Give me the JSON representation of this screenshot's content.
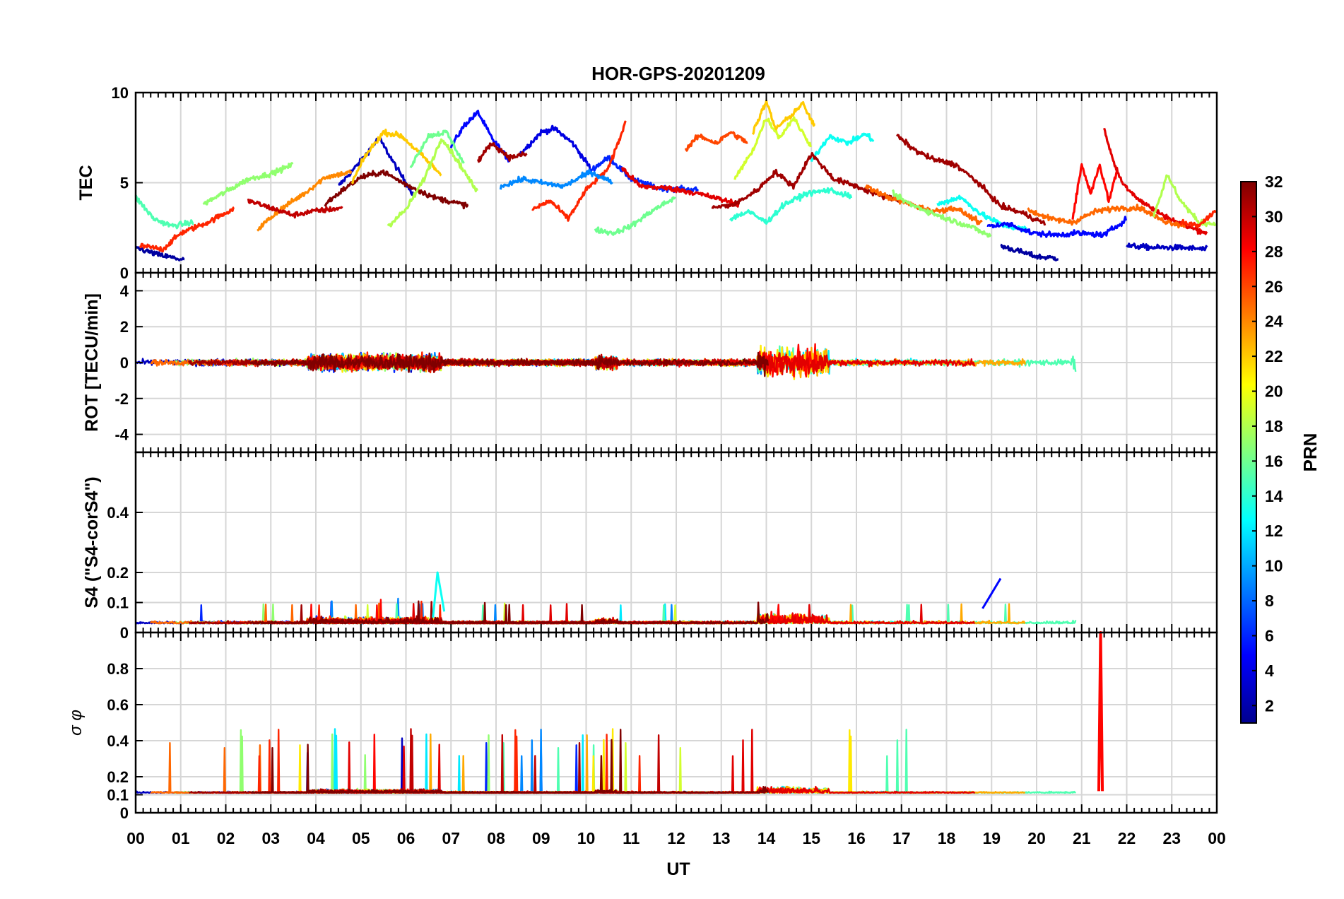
{
  "chart_data": {
    "type": "line",
    "title": "HOR-GPS-20201209",
    "xlabel": "UT",
    "x_ticks": [
      "00",
      "01",
      "02",
      "03",
      "04",
      "05",
      "06",
      "07",
      "08",
      "09",
      "10",
      "11",
      "12",
      "13",
      "14",
      "15",
      "16",
      "17",
      "18",
      "19",
      "20",
      "21",
      "22",
      "23",
      "00"
    ],
    "xlim": [
      0,
      24
    ],
    "colorbar": {
      "label": "PRN",
      "range": [
        1,
        32
      ],
      "ticks": [
        "2",
        "4",
        "6",
        "8",
        "10",
        "12",
        "14",
        "16",
        "18",
        "20",
        "22",
        "24",
        "26",
        "28",
        "30",
        "32"
      ],
      "colormap": "jet"
    },
    "panels": [
      {
        "name": "tec",
        "ylabel": "TEC",
        "ylim": [
          0,
          10
        ],
        "yticks": [
          "0",
          "5",
          "10"
        ],
        "series": [
          {
            "prn": 3,
            "x": [
              4.5,
              5.0,
              5.4,
              5.8,
              6.2
            ],
            "y": [
              4.8,
              6.2,
              7.5,
              5.8,
              4.2
            ]
          },
          {
            "prn": 5,
            "x": [
              7.0,
              7.3,
              7.6,
              7.9,
              8.3
            ],
            "y": [
              7.0,
              8.2,
              8.9,
              7.5,
              6.2
            ]
          },
          {
            "prn": 4,
            "x": [
              8.5,
              9.0,
              9.3,
              9.7,
              10.1
            ],
            "y": [
              6.5,
              7.8,
              8.0,
              7.2,
              5.8
            ]
          },
          {
            "prn": 6,
            "x": [
              10.0,
              10.5,
              11.0,
              11.6,
              12.5
            ],
            "y": [
              5.5,
              6.4,
              5.2,
              4.7,
              4.6
            ]
          },
          {
            "prn": 2,
            "x": [
              19.2,
              19.6,
              20.0,
              20.5
            ],
            "y": [
              1.5,
              1.2,
              0.9,
              0.8
            ]
          },
          {
            "prn": 3,
            "x": [
              22.0,
              22.6,
              23.2,
              23.8
            ],
            "y": [
              1.5,
              1.4,
              1.4,
              1.3
            ]
          },
          {
            "prn": 2,
            "x": [
              0.0,
              0.5,
              1.1
            ],
            "y": [
              1.4,
              1.0,
              0.7
            ]
          },
          {
            "prn": 27,
            "x": [
              0.1,
              0.6,
              1.0,
              1.6,
              2.2
            ],
            "y": [
              1.5,
              1.3,
              2.2,
              2.8,
              3.6
            ]
          },
          {
            "prn": 15,
            "x": [
              0.0,
              0.4,
              0.8,
              1.3
            ],
            "y": [
              4.2,
              3.0,
              2.6,
              2.8
            ]
          },
          {
            "prn": 17,
            "x": [
              1.5,
              2.0,
              2.5,
              3.0,
              3.5
            ],
            "y": [
              3.8,
              4.5,
              5.2,
              5.5,
              6.0
            ]
          },
          {
            "prn": 24,
            "x": [
              2.7,
              3.2,
              3.8,
              4.2,
              4.8
            ],
            "y": [
              2.4,
              3.5,
              4.5,
              5.3,
              5.6
            ]
          },
          {
            "prn": 30,
            "x": [
              2.5,
              3.0,
              3.5,
              3.9,
              4.6
            ],
            "y": [
              4.0,
              3.6,
              3.2,
              3.4,
              3.6
            ]
          },
          {
            "prn": 32,
            "x": [
              4.2,
              4.6,
              5.0,
              5.5,
              6.0,
              6.6,
              7.4
            ],
            "y": [
              3.8,
              4.6,
              5.3,
              5.6,
              4.9,
              4.2,
              3.7
            ]
          },
          {
            "prn": 22,
            "x": [
              4.8,
              5.1,
              5.5,
              5.9,
              6.4,
              6.8
            ],
            "y": [
              5.0,
              6.5,
              7.8,
              7.6,
              6.4,
              5.4
            ]
          },
          {
            "prn": 18,
            "x": [
              5.6,
              6.0,
              6.4,
              6.8,
              7.2,
              7.6
            ],
            "y": [
              2.6,
              3.5,
              5.2,
              7.5,
              6.0,
              4.4
            ]
          },
          {
            "prn": 16,
            "x": [
              6.1,
              6.5,
              6.9,
              7.3
            ],
            "y": [
              5.9,
              7.6,
              7.8,
              6.0
            ]
          },
          {
            "prn": 31,
            "x": [
              7.6,
              7.9,
              8.3,
              8.7
            ],
            "y": [
              6.2,
              7.2,
              6.4,
              6.6
            ]
          },
          {
            "prn": 27,
            "x": [
              8.8,
              9.2,
              9.6,
              10.0,
              10.5,
              10.9
            ],
            "y": [
              3.5,
              4.0,
              3.0,
              4.6,
              5.8,
              8.5
            ]
          },
          {
            "prn": 9,
            "x": [
              8.1,
              8.6,
              9.0,
              9.5,
              10.1,
              10.6
            ],
            "y": [
              4.8,
              5.2,
              5.0,
              4.8,
              5.6,
              5.0
            ]
          },
          {
            "prn": 16,
            "x": [
              10.2,
              10.6,
              11.0,
              11.5,
              12.0
            ],
            "y": [
              2.4,
              2.2,
              2.6,
              3.5,
              4.2
            ]
          },
          {
            "prn": 29,
            "x": [
              10.8,
              11.2,
              11.8,
              12.3,
              12.8,
              13.4
            ],
            "y": [
              5.8,
              4.8,
              4.7,
              4.5,
              4.2,
              3.8
            ]
          },
          {
            "prn": 26,
            "x": [
              12.2,
              12.5,
              12.9,
              13.2,
              13.6
            ],
            "y": [
              6.8,
              7.6,
              7.2,
              7.8,
              7.2
            ]
          },
          {
            "prn": 19,
            "x": [
              13.3,
              13.7,
              14.0,
              14.3,
              14.6,
              15.0
            ],
            "y": [
              5.2,
              6.8,
              8.6,
              7.5,
              8.6,
              7.0
            ]
          },
          {
            "prn": 22,
            "x": [
              13.7,
              14.0,
              14.2,
              14.5,
              14.8,
              15.1
            ],
            "y": [
              7.8,
              9.5,
              8.0,
              8.6,
              9.4,
              8.0
            ]
          },
          {
            "prn": 13,
            "x": [
              15.0,
              15.4,
              15.8,
              16.2,
              16.4
            ],
            "y": [
              6.2,
              7.6,
              7.2,
              7.7,
              7.3
            ]
          },
          {
            "prn": 31,
            "x": [
              12.8,
              13.3,
              13.8,
              14.2,
              14.6,
              15.0,
              15.5,
              16.0,
              16.5,
              17.0
            ],
            "y": [
              3.6,
              3.8,
              4.6,
              5.6,
              4.8,
              6.6,
              5.2,
              4.8,
              4.3,
              4.0
            ]
          },
          {
            "prn": 14,
            "x": [
              13.2,
              13.6,
              14.0,
              14.4,
              14.9,
              15.4,
              15.9
            ],
            "y": [
              3.0,
              3.4,
              2.8,
              3.8,
              4.4,
              4.6,
              4.2
            ]
          },
          {
            "prn": 31,
            "x": [
              16.9,
              17.3,
              17.7,
              18.2,
              18.7,
              19.2,
              19.7,
              20.2
            ],
            "y": [
              7.6,
              6.8,
              6.3,
              6.0,
              5.0,
              3.7,
              3.3,
              2.7
            ]
          },
          {
            "prn": 25,
            "x": [
              16.2,
              16.7,
              17.2,
              17.7,
              18.2,
              18.8
            ],
            "y": [
              4.8,
              4.2,
              3.8,
              3.4,
              3.6,
              2.7
            ]
          },
          {
            "prn": 17,
            "x": [
              16.8,
              17.2,
              17.6,
              18.0,
              18.5,
              19.0
            ],
            "y": [
              4.4,
              3.8,
              3.4,
              3.0,
              2.6,
              2.0
            ]
          },
          {
            "prn": 13,
            "x": [
              17.8,
              18.3,
              18.8,
              19.3,
              19.8
            ],
            "y": [
              3.8,
              4.2,
              3.2,
              2.6,
              2.4
            ]
          },
          {
            "prn": 5,
            "x": [
              18.9,
              19.4,
              19.9,
              20.4,
              20.9,
              21.5,
              22.0
            ],
            "y": [
              2.6,
              2.7,
              2.2,
              2.1,
              2.2,
              2.1,
              3.0
            ]
          },
          {
            "prn": 28,
            "x": [
              20.8,
              21.0,
              21.2,
              21.4,
              21.6,
              21.8
            ],
            "y": [
              3.0,
              6.0,
              4.4,
              6.0,
              4.0,
              5.8
            ]
          },
          {
            "prn": 29,
            "x": [
              21.5,
              21.7,
              21.9,
              22.3,
              22.8,
              23.3,
              23.8
            ],
            "y": [
              8.0,
              6.2,
              5.0,
              4.0,
              3.2,
              2.6,
              2.2
            ]
          },
          {
            "prn": 25,
            "x": [
              19.8,
              20.3,
              20.8,
              21.3,
              21.8,
              22.3,
              22.8,
              23.3
            ],
            "y": [
              3.5,
              3.0,
              2.8,
              3.4,
              3.6,
              3.6,
              2.9,
              2.6
            ]
          },
          {
            "prn": 18,
            "x": [
              22.6,
              22.9,
              23.2,
              23.6,
              24.0
            ],
            "y": [
              3.2,
              5.4,
              4.0,
              2.8,
              2.7
            ]
          },
          {
            "prn": 27,
            "x": [
              23.2,
              23.6,
              24.0
            ],
            "y": [
              2.8,
              2.6,
              3.5
            ]
          }
        ]
      },
      {
        "name": "rot",
        "ylabel": "ROT [TECU/min]",
        "ylim": [
          -5,
          5
        ],
        "yticks": [
          "-4",
          "-2",
          "0",
          "2",
          "4"
        ]
      },
      {
        "name": "s4",
        "ylabel": "S4 (\"S4-corS4\")",
        "ylim": [
          0,
          0.6
        ],
        "yticks": [
          "0",
          "0.1",
          "0.2",
          "0.4"
        ]
      },
      {
        "name": "sigma",
        "ylabel": "σ φ",
        "ylim": [
          0,
          1
        ],
        "yticks": [
          "0",
          "0.1",
          "0.2",
          "0.4",
          "0.6",
          "0.8"
        ]
      }
    ]
  }
}
